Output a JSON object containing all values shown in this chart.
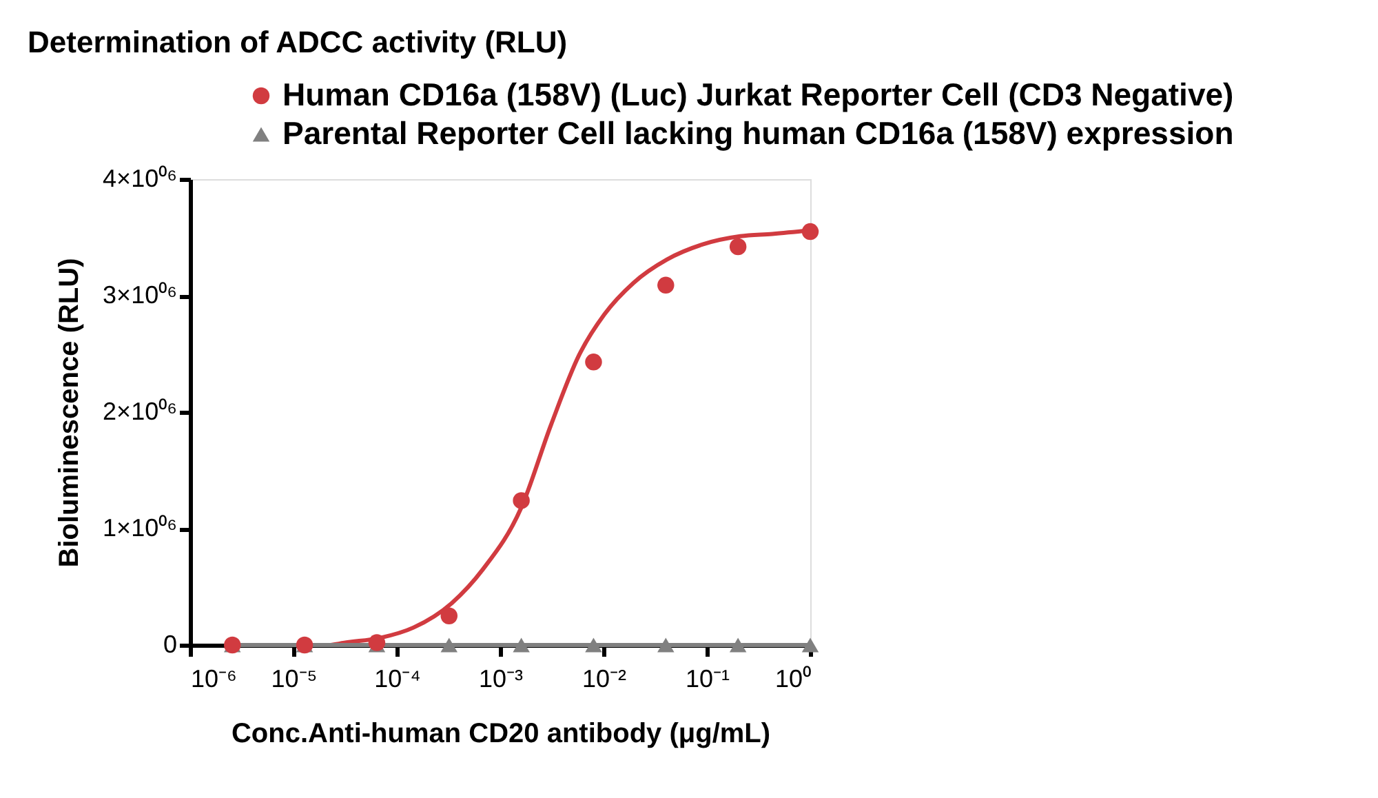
{
  "chart_data": {
    "type": "scatter",
    "title": "Determination of ADCC activity  (RLU)",
    "xlabel": "Conc.Anti-human CD20 antibody (μg/mL)",
    "ylabel": "Bioluminescence (RLU)",
    "log": "x",
    "xlim": [
      1e-06,
      1
    ],
    "ylim": [
      0,
      4000000
    ],
    "xticks": [
      {
        "value": 1e-06,
        "label": "10⁻⁶"
      },
      {
        "value": 1e-05,
        "label": "10⁻⁵"
      },
      {
        "value": 0.0001,
        "label": "10⁻⁴"
      },
      {
        "value": 0.001,
        "label": "10⁻³"
      },
      {
        "value": 0.01,
        "label": "10⁻²"
      },
      {
        "value": 0.1,
        "label": "10⁻¹"
      },
      {
        "value": 1,
        "label": "10⁰"
      }
    ],
    "yticks": [
      0,
      {
        "value": 1000000,
        "label": "1×10⁰⁶"
      },
      {
        "value": 2000000,
        "label": "2×10⁰⁶"
      },
      {
        "value": 3000000,
        "label": "3×10⁰⁶"
      },
      {
        "value": 4000000,
        "label": "4×10⁰⁶"
      }
    ],
    "grid": false,
    "legend": "top",
    "series": [
      {
        "name": "Human CD16a (158V) (Luc) Jurkat Reporter Cell (CD3 Negative)",
        "marker": "circle",
        "color": "#d13b40",
        "x": [
          2.56e-06,
          1.28e-05,
          6.4e-05,
          0.00032,
          0.0016,
          0.008,
          0.04,
          0.2,
          1
        ],
        "values": [
          0,
          0,
          20000,
          250000,
          1240000,
          2430000,
          3090000,
          3420000,
          3550000
        ]
      },
      {
        "type": "line",
        "marker": "none",
        "color": "#d13b40",
        "x": [
          2.3e-05,
          3.1e-05,
          6.8e-05,
          0.000145,
          0.00034,
          0.00068,
          0.0016,
          0.0031,
          0.0058,
          0.0102,
          0.0195,
          0.041,
          0.091,
          0.21,
          0.43,
          1
        ],
        "values": [
          0,
          20000,
          60000,
          150000,
          360000,
          650000,
          1180000,
          1890000,
          2490000,
          2840000,
          3110000,
          3310000,
          3440000,
          3510000,
          3530000,
          3560000
        ]
      },
      {
        "name": "Parental Reporter Cell lacking human CD16a (158V) expression",
        "type": "line",
        "marker": "triangle",
        "color": "#808080",
        "x": [
          2.56e-06,
          1.28e-05,
          6.4e-05,
          0.00032,
          0.0016,
          0.008,
          0.04,
          0.2,
          1
        ],
        "values": [
          0,
          0,
          0,
          0,
          0,
          0,
          0,
          0,
          0
        ]
      }
    ]
  }
}
